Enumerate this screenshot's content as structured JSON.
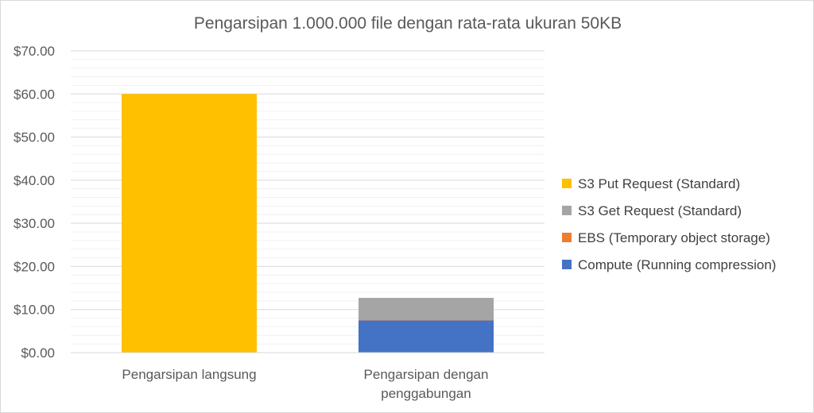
{
  "chart_data": {
    "type": "bar",
    "stacked": true,
    "title": "Pengarsipan 1.000.000 file dengan rata-rata ukuran 50KB",
    "xlabel": "",
    "ylabel": "",
    "categories": [
      [
        "Pengarsipan langsung"
      ],
      [
        "Pengarsipan dengan",
        "penggabungan"
      ]
    ],
    "series": [
      {
        "name": "Compute (Running compression)",
        "color": "#4472c4",
        "values": [
          0,
          7.5
        ]
      },
      {
        "name": "EBS (Temporary object storage)",
        "color": "#ed7d31",
        "values": [
          0,
          0.2
        ]
      },
      {
        "name": "S3 Get Request (Standard)",
        "color": "#a5a5a5",
        "values": [
          0,
          5.0
        ]
      },
      {
        "name": "S3 Put Request (Standard)",
        "color": "#ffc000",
        "values": [
          60,
          0
        ]
      }
    ],
    "legend_order": [
      3,
      2,
      1,
      0
    ],
    "ylim": [
      0,
      70
    ],
    "yticks": [
      0,
      10,
      20,
      30,
      40,
      50,
      60,
      70
    ],
    "ytick_labels": [
      "$0.00",
      "$10.00",
      "$20.00",
      "$30.00",
      "$40.00",
      "$50.00",
      "$60.00",
      "$70.00"
    ],
    "legend_position": "right",
    "grid": true
  }
}
